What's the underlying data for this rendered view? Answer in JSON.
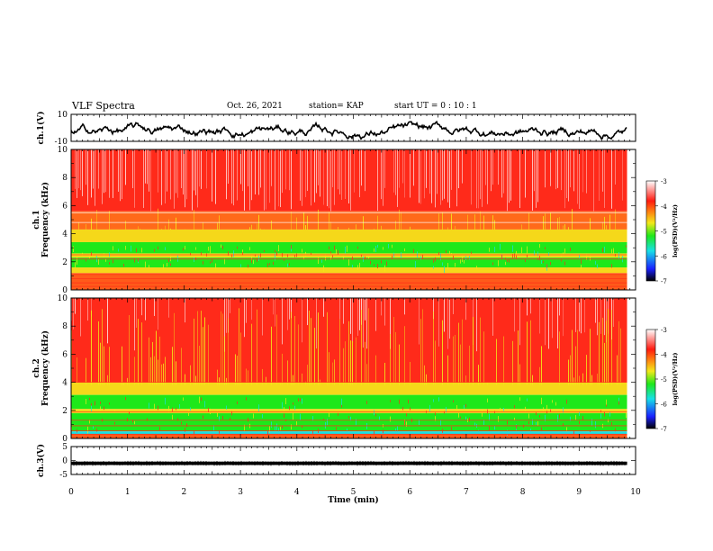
{
  "header": {
    "title": "VLF Spectra",
    "date": "Oct. 26, 2021",
    "station": "station= KAP",
    "start": "start  UT  =   0  : 10 : 1"
  },
  "chart_data": [
    {
      "type": "line",
      "panel": "ch1-waveform",
      "ylabel": "ch.1(V)",
      "ylim": [
        -10,
        10
      ],
      "yticks": [
        "10",
        "-10"
      ],
      "series": [
        {
          "name": "",
          "description": "noisy waveform oscillating roughly between -8 and 3 V"
        }
      ]
    },
    {
      "type": "heatmap",
      "panel": "ch1-spectrogram",
      "ylabel": "ch.1\nFrequency  (kHz)",
      "ylim": [
        0,
        10
      ],
      "yticks": [
        "0",
        "2",
        "4",
        "6",
        "8",
        "10"
      ],
      "xlim": [
        0,
        9.85
      ],
      "colorbar": {
        "label": "log(PSD)(V²/Hz)",
        "range": [
          -7,
          -3
        ],
        "ticks": [
          "-3",
          "-4",
          "-5",
          "-6",
          "-7"
        ]
      }
    },
    {
      "type": "heatmap",
      "panel": "ch2-spectrogram",
      "ylabel": "ch.2\nFrequency  (kHz)",
      "ylim": [
        0,
        10
      ],
      "yticks": [
        "0",
        "2",
        "4",
        "6",
        "8",
        "10"
      ],
      "xlim": [
        0,
        9.85
      ],
      "colorbar": {
        "label": "log(PSD)(V²/Hz)",
        "range": [
          -7,
          -3
        ],
        "ticks": [
          "-3",
          "-4",
          "-5",
          "-6",
          "-7"
        ]
      }
    },
    {
      "type": "line",
      "panel": "ch3-waveform",
      "ylabel": "ch.3(V)",
      "ylim": [
        -5,
        5
      ],
      "yticks": [
        "5",
        "0",
        "-5"
      ],
      "series": [
        {
          "name": "",
          "description": "thick flat band around -1 V"
        }
      ]
    }
  ],
  "xaxis": {
    "label": "Time  (min)",
    "ticks": [
      "0",
      "1",
      "2",
      "3",
      "4",
      "5",
      "6",
      "7",
      "8",
      "9",
      "10"
    ],
    "xlim": [
      0,
      10
    ],
    "data_end": 9.85
  },
  "colors": {
    "red": "#ff2a1a",
    "yellow": "#f2e81a",
    "green": "#1ee81a",
    "cyan": "#18e0e6",
    "blue": "#1a40ff",
    "white": "#ffffff"
  }
}
